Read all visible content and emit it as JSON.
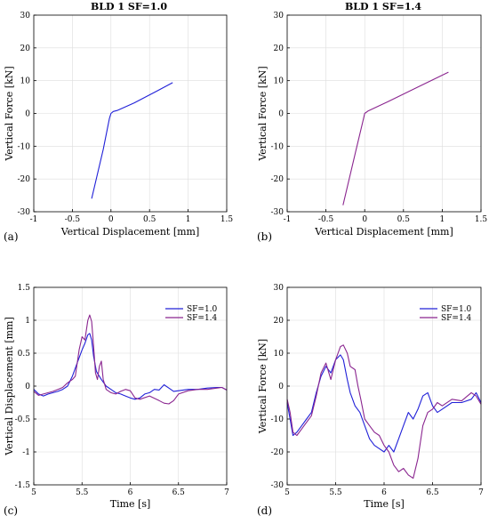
{
  "colors": {
    "sf10": "#2020d8",
    "sf14": "#8a258f",
    "axis": "#000000",
    "grid": "#dddddd"
  },
  "chart_data": [
    {
      "panel": "(a)",
      "type": "line",
      "title": "BLD 1 SF=1.0",
      "xlabel": "Vertical Displacement [mm]",
      "ylabel": "Vertical Force [kN]",
      "xlim": [
        -1,
        1.5
      ],
      "ylim": [
        -30,
        30
      ],
      "xticks": [
        "-1",
        "-0.5",
        "0",
        "0.5",
        "1",
        "1.5"
      ],
      "yticks": [
        "-30",
        "-20",
        "-10",
        "0",
        "10",
        "20",
        "30"
      ],
      "grid": true,
      "series": [
        {
          "color": "sf10",
          "points": [
            [
              -0.25,
              -26
            ],
            [
              -0.1,
              -11
            ],
            [
              -0.02,
              -1.5
            ],
            [
              0,
              0
            ],
            [
              0.03,
              0.6
            ],
            [
              0.08,
              0.9
            ],
            [
              0.3,
              3.2
            ],
            [
              0.6,
              6.9
            ],
            [
              0.8,
              9.4
            ]
          ]
        }
      ]
    },
    {
      "panel": "(b)",
      "type": "line",
      "title": "BLD 1 SF=1.4",
      "xlabel": "Vertical Displacement [mm]",
      "ylabel": "Vertical Force [kN]",
      "xlim": [
        -1,
        1.5
      ],
      "ylim": [
        -30,
        30
      ],
      "xticks": [
        "-1",
        "-0.5",
        "0",
        "0.5",
        "1",
        "1.5"
      ],
      "yticks": [
        "-30",
        "-20",
        "-10",
        "0",
        "10",
        "20",
        "30"
      ],
      "grid": true,
      "series": [
        {
          "color": "sf14",
          "points": [
            [
              -0.28,
              -28
            ],
            [
              -0.12,
              -12
            ],
            [
              -0.02,
              -2
            ],
            [
              0,
              0
            ],
            [
              0.04,
              0.7
            ],
            [
              0.3,
              3.6
            ],
            [
              0.7,
              8.2
            ],
            [
              1.08,
              12.6
            ]
          ]
        }
      ]
    },
    {
      "panel": "(c)",
      "type": "line",
      "xlabel": "Time [s]",
      "ylabel": "Vertical Displacement [mm]",
      "xlim": [
        5,
        7
      ],
      "ylim": [
        -1.5,
        1.5
      ],
      "xticks": [
        "5",
        "5.5",
        "6",
        "6.5",
        "7"
      ],
      "yticks": [
        "-1.5",
        "-1",
        "-0.5",
        "0",
        "0.5",
        "1",
        "1.5"
      ],
      "grid": true,
      "legend": "top-right",
      "series": [
        {
          "name": "SF=1.0",
          "color": "sf10",
          "points": [
            [
              5.0,
              -0.05
            ],
            [
              5.05,
              -0.12
            ],
            [
              5.1,
              -0.15
            ],
            [
              5.15,
              -0.12
            ],
            [
              5.2,
              -0.1
            ],
            [
              5.25,
              -0.08
            ],
            [
              5.3,
              -0.05
            ],
            [
              5.35,
              0.0
            ],
            [
              5.4,
              0.15
            ],
            [
              5.45,
              0.35
            ],
            [
              5.5,
              0.55
            ],
            [
              5.53,
              0.65
            ],
            [
              5.56,
              0.78
            ],
            [
              5.58,
              0.8
            ],
            [
              5.6,
              0.7
            ],
            [
              5.62,
              0.45
            ],
            [
              5.65,
              0.22
            ],
            [
              5.7,
              0.1
            ],
            [
              5.75,
              0.0
            ],
            [
              5.8,
              -0.05
            ],
            [
              5.85,
              -0.1
            ],
            [
              5.9,
              -0.12
            ],
            [
              5.95,
              -0.15
            ],
            [
              6.0,
              -0.18
            ],
            [
              6.05,
              -0.2
            ],
            [
              6.1,
              -0.18
            ],
            [
              6.15,
              -0.12
            ],
            [
              6.2,
              -0.1
            ],
            [
              6.25,
              -0.05
            ],
            [
              6.3,
              -0.06
            ],
            [
              6.35,
              0.02
            ],
            [
              6.4,
              -0.03
            ],
            [
              6.45,
              -0.08
            ],
            [
              6.5,
              -0.07
            ],
            [
              6.6,
              -0.05
            ],
            [
              6.7,
              -0.05
            ],
            [
              6.8,
              -0.03
            ],
            [
              6.9,
              -0.02
            ],
            [
              6.95,
              -0.02
            ],
            [
              7.0,
              -0.06
            ]
          ]
        },
        {
          "name": "SF=1.4",
          "color": "sf14",
          "points": [
            [
              5.0,
              -0.08
            ],
            [
              5.05,
              -0.14
            ],
            [
              5.1,
              -0.12
            ],
            [
              5.15,
              -0.1
            ],
            [
              5.2,
              -0.08
            ],
            [
              5.25,
              -0.05
            ],
            [
              5.3,
              -0.02
            ],
            [
              5.35,
              0.05
            ],
            [
              5.4,
              0.1
            ],
            [
              5.43,
              0.15
            ],
            [
              5.47,
              0.55
            ],
            [
              5.5,
              0.75
            ],
            [
              5.53,
              0.7
            ],
            [
              5.56,
              1.0
            ],
            [
              5.58,
              1.08
            ],
            [
              5.6,
              0.98
            ],
            [
              5.62,
              0.6
            ],
            [
              5.64,
              0.2
            ],
            [
              5.66,
              0.1
            ],
            [
              5.68,
              0.3
            ],
            [
              5.7,
              0.38
            ],
            [
              5.72,
              0.1
            ],
            [
              5.75,
              -0.05
            ],
            [
              5.8,
              -0.1
            ],
            [
              5.85,
              -0.12
            ],
            [
              5.9,
              -0.08
            ],
            [
              5.95,
              -0.05
            ],
            [
              6.0,
              -0.07
            ],
            [
              6.05,
              -0.18
            ],
            [
              6.1,
              -0.2
            ],
            [
              6.2,
              -0.15
            ],
            [
              6.3,
              -0.22
            ],
            [
              6.35,
              -0.26
            ],
            [
              6.4,
              -0.27
            ],
            [
              6.45,
              -0.22
            ],
            [
              6.5,
              -0.12
            ],
            [
              6.6,
              -0.07
            ],
            [
              6.7,
              -0.05
            ],
            [
              6.8,
              -0.05
            ],
            [
              6.9,
              -0.03
            ],
            [
              6.95,
              -0.02
            ],
            [
              7.0,
              -0.06
            ]
          ]
        }
      ]
    },
    {
      "panel": "(d)",
      "type": "line",
      "xlabel": "Time [s]",
      "ylabel": "Vertical Force [kN]",
      "xlim": [
        5,
        7
      ],
      "ylim": [
        -30,
        30
      ],
      "xticks": [
        "5",
        "5.5",
        "6",
        "6.5",
        "7"
      ],
      "yticks": [
        "-30",
        "-20",
        "-10",
        "0",
        "10",
        "20",
        "30"
      ],
      "grid": true,
      "legend": "top-right",
      "series": [
        {
          "name": "SF=1.0",
          "color": "sf10",
          "points": [
            [
              5.0,
              -5
            ],
            [
              5.03,
              -10
            ],
            [
              5.06,
              -15
            ],
            [
              5.1,
              -14
            ],
            [
              5.15,
              -12
            ],
            [
              5.2,
              -10
            ],
            [
              5.25,
              -8
            ],
            [
              5.3,
              -2
            ],
            [
              5.35,
              3
            ],
            [
              5.4,
              6
            ],
            [
              5.45,
              4
            ],
            [
              5.5,
              8
            ],
            [
              5.55,
              9.5
            ],
            [
              5.58,
              8
            ],
            [
              5.62,
              2
            ],
            [
              5.65,
              -2
            ],
            [
              5.7,
              -6
            ],
            [
              5.75,
              -8
            ],
            [
              5.8,
              -12
            ],
            [
              5.85,
              -16
            ],
            [
              5.9,
              -18
            ],
            [
              5.95,
              -19
            ],
            [
              6.0,
              -20
            ],
            [
              6.05,
              -18
            ],
            [
              6.1,
              -20
            ],
            [
              6.15,
              -16
            ],
            [
              6.2,
              -12
            ],
            [
              6.25,
              -8
            ],
            [
              6.3,
              -10
            ],
            [
              6.35,
              -7
            ],
            [
              6.4,
              -3
            ],
            [
              6.45,
              -2
            ],
            [
              6.5,
              -6
            ],
            [
              6.55,
              -8
            ],
            [
              6.6,
              -7
            ],
            [
              6.7,
              -5
            ],
            [
              6.8,
              -5
            ],
            [
              6.9,
              -4
            ],
            [
              6.95,
              -2
            ],
            [
              7.0,
              -5
            ]
          ]
        },
        {
          "name": "SF=1.4",
          "color": "sf14",
          "points": [
            [
              5.0,
              -4
            ],
            [
              5.03,
              -8
            ],
            [
              5.06,
              -14
            ],
            [
              5.1,
              -15
            ],
            [
              5.15,
              -13
            ],
            [
              5.2,
              -11
            ],
            [
              5.25,
              -9
            ],
            [
              5.3,
              -3
            ],
            [
              5.35,
              4
            ],
            [
              5.4,
              7
            ],
            [
              5.45,
              2
            ],
            [
              5.5,
              8
            ],
            [
              5.55,
              12
            ],
            [
              5.58,
              12.5
            ],
            [
              5.62,
              10
            ],
            [
              5.65,
              6
            ],
            [
              5.7,
              5
            ],
            [
              5.73,
              0
            ],
            [
              5.76,
              -4
            ],
            [
              5.8,
              -10
            ],
            [
              5.85,
              -12
            ],
            [
              5.9,
              -14
            ],
            [
              5.95,
              -15
            ],
            [
              6.0,
              -18
            ],
            [
              6.05,
              -20
            ],
            [
              6.1,
              -24
            ],
            [
              6.15,
              -26
            ],
            [
              6.2,
              -25
            ],
            [
              6.25,
              -27
            ],
            [
              6.3,
              -28
            ],
            [
              6.35,
              -22
            ],
            [
              6.4,
              -12
            ],
            [
              6.45,
              -8
            ],
            [
              6.5,
              -7
            ],
            [
              6.55,
              -5
            ],
            [
              6.6,
              -6
            ],
            [
              6.7,
              -4
            ],
            [
              6.8,
              -4.5
            ],
            [
              6.9,
              -2
            ],
            [
              6.95,
              -3
            ],
            [
              7.0,
              -5.5
            ]
          ]
        }
      ]
    }
  ]
}
